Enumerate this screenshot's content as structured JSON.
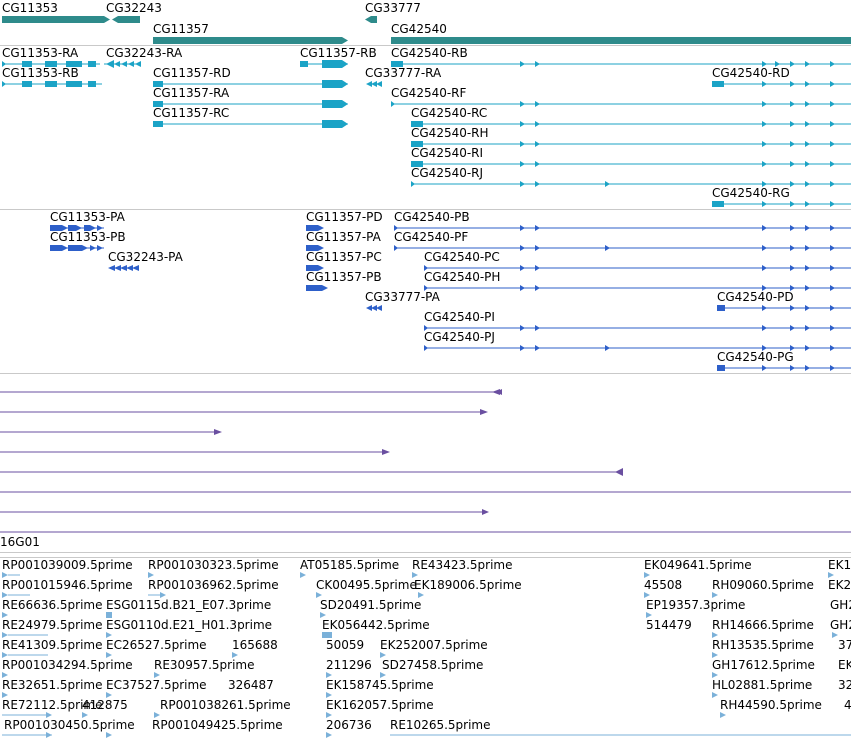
{
  "colors": {
    "gene": "#2e8b8b",
    "mrna": "#1ba3c6",
    "cds": "#2d5fc9",
    "feature": "#6a4fa0",
    "est": "#7bb1d9",
    "separator": "#c9c9c9"
  },
  "gene_track": {
    "labels": [
      "CG11353",
      "CG32243",
      "CG11357",
      "CG33777",
      "CG42540"
    ]
  },
  "mrna_track": {
    "labels": [
      "CG11353-RA",
      "CG32243-RA",
      "CG11357-RB",
      "CG42540-RB",
      "CG11353-RB",
      "CG11357-RD",
      "CG33777-RA",
      "CG42540-RD",
      "CG11357-RA",
      "CG42540-RF",
      "CG11357-RC",
      "CG42540-RC",
      "CG42540-RH",
      "CG42540-RI",
      "CG42540-RJ",
      "CG42540-RG"
    ]
  },
  "protein_track": {
    "labels": [
      "CG11353-PA",
      "CG11357-PD",
      "CG42540-PB",
      "CG11353-PB",
      "CG11357-PA",
      "CG42540-PF",
      "CG32243-PA",
      "CG11357-PC",
      "CG42540-PC",
      "CG11357-PB",
      "CG42540-PH",
      "CG33777-PA",
      "CG42540-PD",
      "CG42540-PI",
      "CG42540-PJ",
      "CG42540-PG"
    ]
  },
  "feature_track": {
    "labels": [
      "16G01"
    ]
  },
  "est_track": {
    "labels": [
      "RP001039009.5prime",
      "RP001030323.5prime",
      "AT05185.5prime",
      "RE43423.5prime",
      "EK049641.5prime",
      "EK1",
      "RP001015946.5prime",
      "RP001036962.5prime",
      "CK00495.5prime",
      "EK189006.5prime",
      "45508",
      "RH09060.5prime",
      "EK2",
      "RE66636.5prime",
      "ESG0115d.B21_E07.3prime",
      "SD20491.5prime",
      "EP19357.3prime",
      "GH2",
      "RE24979.5prime",
      "ESG0110d.E21_H01.3prime",
      "EK056442.5prime",
      "514479",
      "RH14666.5prime",
      "GH2",
      "RE41309.5prime",
      "EC26527.5prime",
      "165688",
      "50059",
      "EK252007.5prime",
      "RH13535.5prime",
      "37",
      "RP001034294.5prime",
      "RE30957.5prime",
      "211296",
      "SD27458.5prime",
      "GH17612.5prime",
      "EK",
      "RE32651.5prime",
      "EC37527.5prime",
      "326487",
      "EK158745.5prime",
      "HL02881.5prime",
      "32",
      "RE72112.5prime",
      "412875",
      "RP001038261.5prime",
      "EK162057.5prime",
      "RH44590.5prime",
      "4",
      "RP001030450.5prime",
      "RP001049425.5prime",
      "206736",
      "RE10265.5prime"
    ]
  }
}
